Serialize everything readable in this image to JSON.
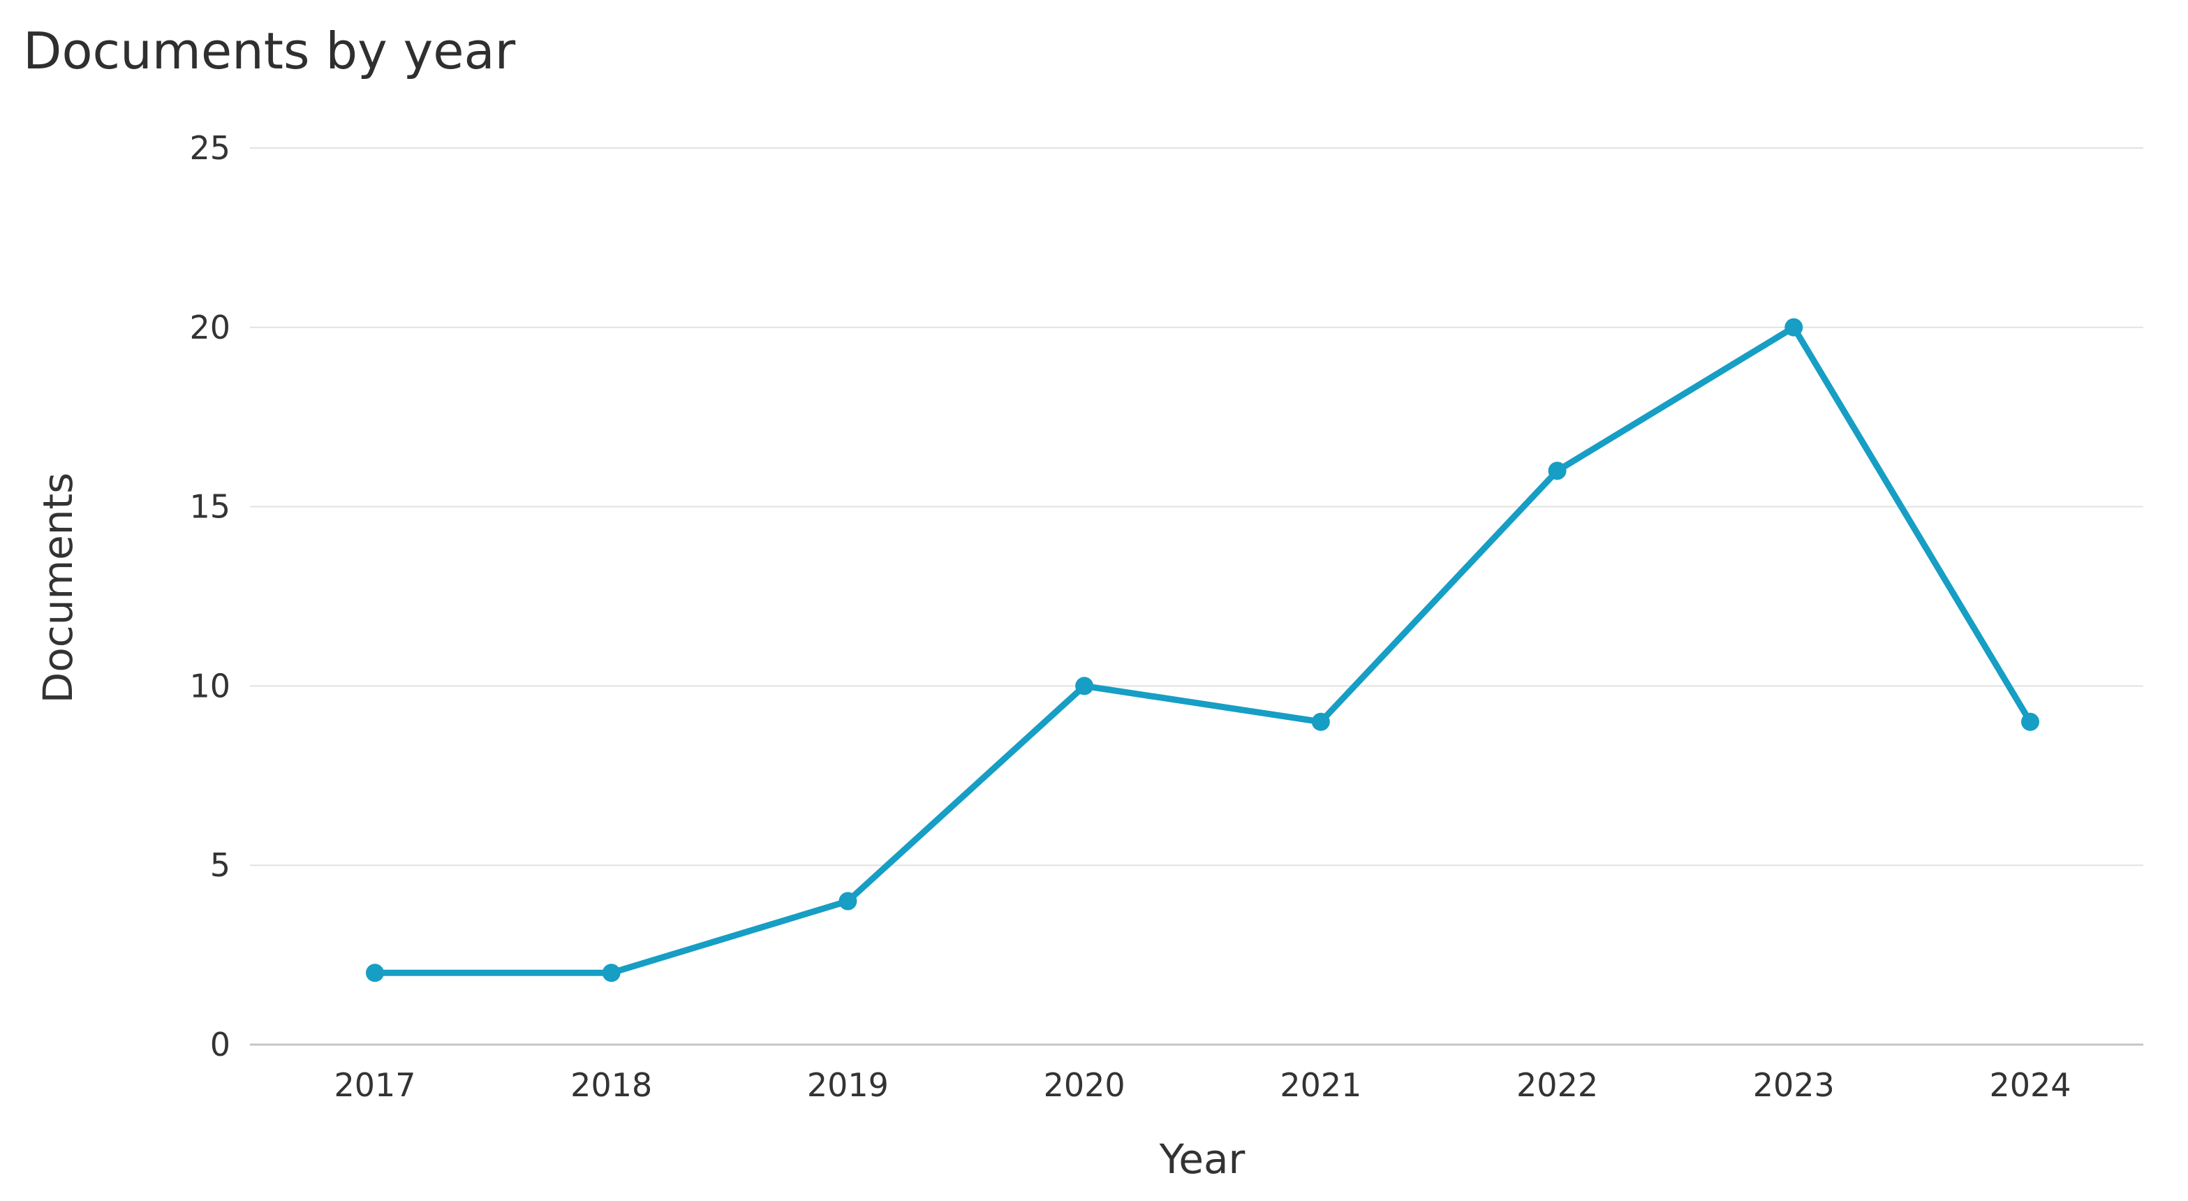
{
  "chart_data": {
    "type": "line",
    "title": "Documents by year",
    "xlabel": "Year",
    "ylabel": "Documents",
    "categories": [
      "2017",
      "2018",
      "2019",
      "2020",
      "2021",
      "2022",
      "2023",
      "2024"
    ],
    "series": [
      {
        "name": "Documents",
        "values": [
          2,
          2,
          4,
          10,
          9,
          16,
          20,
          9
        ]
      }
    ],
    "ylim": [
      0,
      25
    ],
    "yticks": [
      0,
      5,
      10,
      15,
      20,
      25
    ],
    "grid": true,
    "legend_position": "none",
    "line_color": "#169EC4",
    "marker_color": "#169EC4",
    "text_color": "#333333",
    "grid_color": "#e2e2e2",
    "axis_color": "#c6c6c6",
    "background_color": "#ffffff"
  }
}
